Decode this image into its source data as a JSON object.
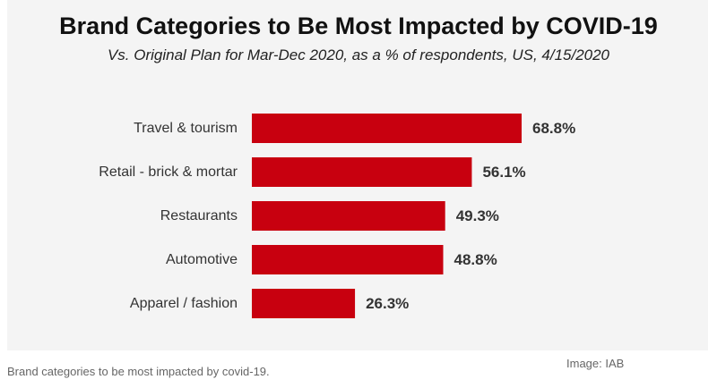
{
  "chart_data": {
    "type": "bar",
    "orientation": "horizontal",
    "title": "Brand Categories to Be Most Impacted by COVID-19",
    "subtitle": "Vs. Original Plan for Mar-Dec 2020, as a % of respondents, US, 4/15/2020",
    "categories": [
      "Travel & tourism",
      "Retail - brick & mortar",
      "Restaurants",
      "Automotive",
      "Apparel / fashion"
    ],
    "values": [
      68.8,
      56.1,
      49.3,
      48.8,
      26.3
    ],
    "value_labels": [
      "68.8%",
      "56.1%",
      "49.3%",
      "48.8%",
      "26.3%"
    ],
    "xlim": [
      0,
      68.8
    ],
    "grid": false,
    "legend": "none",
    "bar_color": "#c8000f"
  },
  "caption": "Brand categories to be most impacted by covid-19.",
  "credit": "Image: IAB"
}
